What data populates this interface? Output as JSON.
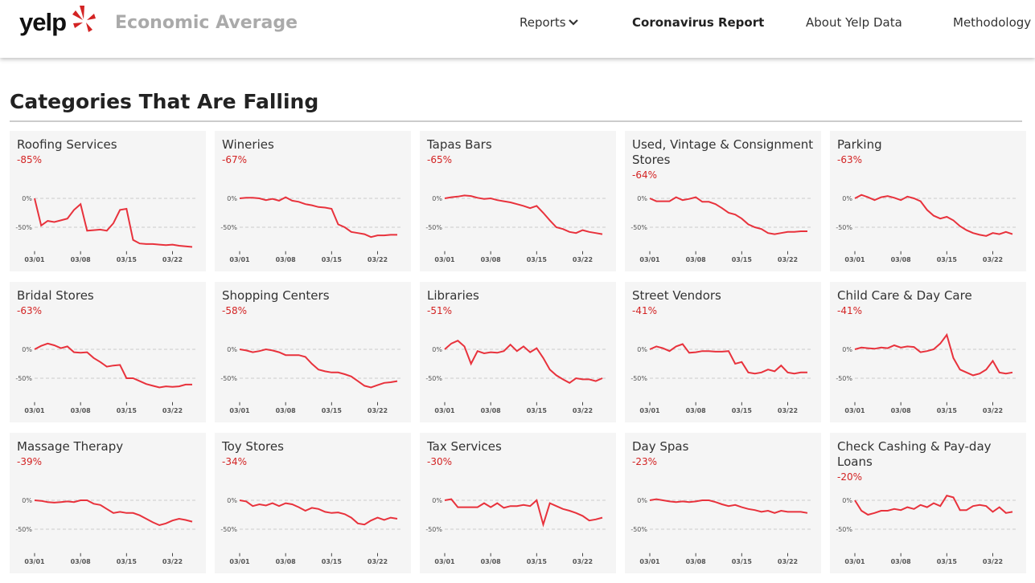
{
  "header": {
    "logo": "yelp",
    "title": "Economic Average",
    "nav": [
      "Reports",
      "Coronavirus Report",
      "About Yelp Data",
      "Methodology"
    ]
  },
  "section_title": "Categories That Are Falling",
  "chart_data": [
    {
      "type": "line",
      "title": "Roofing Services",
      "subtitle": "-85%",
      "color": "#e8323c",
      "grid": true,
      "ylim": [
        -90,
        20
      ],
      "yticks": [
        {
          "value": 0,
          "label": "0%"
        },
        {
          "value": -50,
          "label": "-50%"
        }
      ],
      "categories": [
        "03/01",
        null,
        null,
        null,
        null,
        null,
        null,
        "03/08",
        null,
        null,
        null,
        null,
        null,
        null,
        "03/15",
        null,
        null,
        null,
        null,
        null,
        null,
        "03/22",
        null,
        null,
        null
      ],
      "values": [
        0,
        -47,
        -39,
        -41,
        -38,
        -35,
        -20,
        -10,
        -56,
        -55,
        -54,
        -56,
        -43,
        -20,
        -18,
        -72,
        -78,
        -79,
        -79,
        -80,
        -81,
        -80,
        -82,
        -83,
        -84
      ]
    },
    {
      "type": "line",
      "title": "Wineries",
      "subtitle": "-67%",
      "color": "#e8323c",
      "grid": true,
      "ylim": [
        -90,
        20
      ],
      "yticks": [
        {
          "value": 0,
          "label": "0%"
        },
        {
          "value": -50,
          "label": "-50%"
        }
      ],
      "categories": [
        "03/01",
        null,
        null,
        null,
        null,
        null,
        null,
        "03/08",
        null,
        null,
        null,
        null,
        null,
        null,
        "03/15",
        null,
        null,
        null,
        null,
        null,
        null,
        "03/22",
        null,
        null,
        null
      ],
      "values": [
        0,
        1,
        1,
        0,
        -3,
        -1,
        -4,
        2,
        -4,
        -6,
        -10,
        -12,
        -15,
        -16,
        -18,
        -45,
        -50,
        -58,
        -60,
        -62,
        -67,
        -64,
        -64,
        -63,
        -63
      ]
    },
    {
      "type": "line",
      "title": "Tapas Bars",
      "subtitle": "-65%",
      "color": "#e8323c",
      "grid": true,
      "ylim": [
        -90,
        20
      ],
      "yticks": [
        {
          "value": 0,
          "label": "0%"
        },
        {
          "value": -50,
          "label": "-50%"
        }
      ],
      "categories": [
        "03/01",
        null,
        null,
        null,
        null,
        null,
        null,
        "03/08",
        null,
        null,
        null,
        null,
        null,
        null,
        "03/15",
        null,
        null,
        null,
        null,
        null,
        null,
        "03/22",
        null,
        null,
        null
      ],
      "values": [
        0,
        2,
        3,
        5,
        4,
        1,
        -1,
        0,
        -3,
        -5,
        -7,
        -10,
        -13,
        -17,
        -13,
        -25,
        -38,
        -50,
        -53,
        -58,
        -60,
        -55,
        -58,
        -60,
        -62
      ]
    },
    {
      "type": "line",
      "title": "Used, Vintage & Consignment Stores",
      "subtitle": "-64%",
      "color": "#e8323c",
      "grid": true,
      "ylim": [
        -90,
        20
      ],
      "yticks": [
        {
          "value": 0,
          "label": "0%"
        },
        {
          "value": -50,
          "label": "-50%"
        }
      ],
      "categories": [
        "03/01",
        null,
        null,
        null,
        null,
        null,
        null,
        "03/08",
        null,
        null,
        null,
        null,
        null,
        null,
        "03/15",
        null,
        null,
        null,
        null,
        null,
        null,
        "03/22",
        null,
        null,
        null
      ],
      "values": [
        0,
        -5,
        -5,
        -5,
        2,
        -3,
        -1,
        2,
        -6,
        -6,
        -10,
        -17,
        -25,
        -28,
        -35,
        -45,
        -50,
        -53,
        -60,
        -62,
        -60,
        -58,
        -58,
        -57,
        -57
      ]
    },
    {
      "type": "line",
      "title": "Parking",
      "subtitle": "-63%",
      "color": "#e8323c",
      "grid": true,
      "ylim": [
        -90,
        20
      ],
      "yticks": [
        {
          "value": 0,
          "label": "0%"
        },
        {
          "value": -50,
          "label": "-50%"
        }
      ],
      "categories": [
        "03/01",
        null,
        null,
        null,
        null,
        null,
        null,
        "03/08",
        null,
        null,
        null,
        null,
        null,
        null,
        "03/15",
        null,
        null,
        null,
        null,
        null,
        null,
        "03/22",
        null,
        null,
        null
      ],
      "values": [
        0,
        6,
        2,
        -3,
        2,
        4,
        1,
        -3,
        3,
        0,
        -5,
        -20,
        -30,
        -35,
        -32,
        -38,
        -48,
        -55,
        -60,
        -63,
        -65,
        -60,
        -62,
        -58,
        -62
      ]
    },
    {
      "type": "line",
      "title": "Bridal Stores",
      "subtitle": "-63%",
      "color": "#e8323c",
      "grid": true,
      "ylim": [
        -90,
        20
      ],
      "yticks": [
        {
          "value": 0,
          "label": "0%"
        },
        {
          "value": -50,
          "label": "-50%"
        }
      ],
      "categories": [
        "03/01",
        null,
        null,
        null,
        null,
        null,
        null,
        "03/08",
        null,
        null,
        null,
        null,
        null,
        null,
        "03/15",
        null,
        null,
        null,
        null,
        null,
        null,
        "03/22",
        null,
        null,
        null
      ],
      "values": [
        0,
        6,
        10,
        7,
        2,
        5,
        -5,
        -6,
        -5,
        -15,
        -22,
        -30,
        -28,
        -27,
        -50,
        -50,
        -55,
        -60,
        -63,
        -66,
        -64,
        -65,
        -64,
        -61,
        -61
      ]
    },
    {
      "type": "line",
      "title": "Shopping Centers",
      "subtitle": "-58%",
      "color": "#e8323c",
      "grid": true,
      "ylim": [
        -90,
        20
      ],
      "yticks": [
        {
          "value": 0,
          "label": "0%"
        },
        {
          "value": -50,
          "label": "-50%"
        }
      ],
      "categories": [
        "03/01",
        null,
        null,
        null,
        null,
        null,
        null,
        "03/08",
        null,
        null,
        null,
        null,
        null,
        null,
        "03/15",
        null,
        null,
        null,
        null,
        null,
        null,
        "03/22",
        null,
        null,
        null
      ],
      "values": [
        0,
        -2,
        -5,
        -3,
        0,
        -2,
        -5,
        -10,
        -10,
        -10,
        -13,
        -25,
        -35,
        -38,
        -40,
        -40,
        -43,
        -47,
        -55,
        -63,
        -66,
        -62,
        -58,
        -57,
        -55
      ]
    },
    {
      "type": "line",
      "title": "Libraries",
      "subtitle": "-51%",
      "color": "#e8323c",
      "grid": true,
      "ylim": [
        -90,
        20
      ],
      "yticks": [
        {
          "value": 0,
          "label": "0%"
        },
        {
          "value": -50,
          "label": "-50%"
        }
      ],
      "categories": [
        "03/01",
        null,
        null,
        null,
        null,
        null,
        null,
        "03/08",
        null,
        null,
        null,
        null,
        null,
        null,
        "03/15",
        null,
        null,
        null,
        null,
        null,
        null,
        "03/22",
        null,
        null,
        null
      ],
      "values": [
        0,
        10,
        15,
        5,
        -25,
        -3,
        -7,
        -5,
        -6,
        -3,
        8,
        -3,
        5,
        -5,
        2,
        -15,
        -35,
        -45,
        -52,
        -58,
        -50,
        -52,
        -52,
        -55,
        -50
      ]
    },
    {
      "type": "line",
      "title": "Street Vendors",
      "subtitle": "-41%",
      "color": "#e8323c",
      "grid": true,
      "ylim": [
        -90,
        20
      ],
      "yticks": [
        {
          "value": 0,
          "label": "0%"
        },
        {
          "value": -50,
          "label": "-50%"
        }
      ],
      "categories": [
        "03/01",
        null,
        null,
        null,
        null,
        null,
        null,
        "03/08",
        null,
        null,
        null,
        null,
        null,
        null,
        "03/15",
        null,
        null,
        null,
        null,
        null,
        null,
        "03/22",
        null,
        null,
        null
      ],
      "values": [
        0,
        5,
        2,
        -3,
        5,
        9,
        -6,
        -5,
        -3,
        -3,
        -4,
        -4,
        -3,
        -25,
        -22,
        -40,
        -42,
        -40,
        -35,
        -38,
        -28,
        -40,
        -42,
        -40,
        -40
      ]
    },
    {
      "type": "line",
      "title": "Child Care & Day Care",
      "subtitle": "-41%",
      "color": "#e8323c",
      "grid": true,
      "ylim": [
        -90,
        20
      ],
      "yticks": [
        {
          "value": 0,
          "label": "0%"
        },
        {
          "value": -50,
          "label": "-50%"
        }
      ],
      "categories": [
        "03/01",
        null,
        null,
        null,
        null,
        null,
        null,
        "03/08",
        null,
        null,
        null,
        null,
        null,
        null,
        "03/15",
        null,
        null,
        null,
        null,
        null,
        null,
        "03/22",
        null,
        null,
        null
      ],
      "values": [
        0,
        3,
        2,
        1,
        3,
        2,
        7,
        3,
        5,
        4,
        -5,
        -3,
        0,
        10,
        25,
        -15,
        -35,
        -40,
        -45,
        -42,
        -35,
        -20,
        -40,
        -42,
        -40
      ]
    },
    {
      "type": "line",
      "title": "Massage Therapy",
      "subtitle": "-39%",
      "color": "#e8323c",
      "grid": true,
      "ylim": [
        -90,
        20
      ],
      "yticks": [
        {
          "value": 0,
          "label": "0%"
        },
        {
          "value": -50,
          "label": "-50%"
        }
      ],
      "categories": [
        "03/01",
        null,
        null,
        null,
        null,
        null,
        null,
        "03/08",
        null,
        null,
        null,
        null,
        null,
        null,
        "03/15",
        null,
        null,
        null,
        null,
        null,
        null,
        "03/22",
        null,
        null,
        null
      ],
      "values": [
        0,
        -1,
        -3,
        -4,
        -3,
        -2,
        -3,
        0,
        0,
        -6,
        -8,
        -15,
        -22,
        -20,
        -22,
        -22,
        -26,
        -32,
        -38,
        -43,
        -40,
        -35,
        -32,
        -34,
        -37
      ]
    },
    {
      "type": "line",
      "title": "Toy Stores",
      "subtitle": "-34%",
      "color": "#e8323c",
      "grid": true,
      "ylim": [
        -90,
        20
      ],
      "yticks": [
        {
          "value": 0,
          "label": "0%"
        },
        {
          "value": -50,
          "label": "-50%"
        }
      ],
      "categories": [
        "03/01",
        null,
        null,
        null,
        null,
        null,
        null,
        "03/08",
        null,
        null,
        null,
        null,
        null,
        null,
        "03/15",
        null,
        null,
        null,
        null,
        null,
        null,
        "03/22",
        null,
        null,
        null
      ],
      "values": [
        0,
        -2,
        -10,
        -7,
        -9,
        -5,
        -10,
        -5,
        -7,
        -12,
        -18,
        -13,
        -15,
        -20,
        -22,
        -21,
        -24,
        -30,
        -40,
        -42,
        -35,
        -30,
        -34,
        -30,
        -32
      ]
    },
    {
      "type": "line",
      "title": "Tax Services",
      "subtitle": "-30%",
      "color": "#e8323c",
      "grid": true,
      "ylim": [
        -90,
        20
      ],
      "yticks": [
        {
          "value": 0,
          "label": "0%"
        },
        {
          "value": -50,
          "label": "-50%"
        }
      ],
      "categories": [
        "03/01",
        null,
        null,
        null,
        null,
        null,
        null,
        "03/08",
        null,
        null,
        null,
        null,
        null,
        null,
        "03/15",
        null,
        null,
        null,
        null,
        null,
        null,
        "03/22",
        null,
        null,
        null
      ],
      "values": [
        0,
        2,
        -12,
        -12,
        -12,
        -12,
        -5,
        -12,
        -5,
        -13,
        -10,
        -10,
        -8,
        -10,
        0,
        -42,
        -5,
        -10,
        -15,
        -18,
        -22,
        -27,
        -35,
        -33,
        -30
      ]
    },
    {
      "type": "line",
      "title": "Day Spas",
      "subtitle": "-23%",
      "color": "#e8323c",
      "grid": true,
      "ylim": [
        -90,
        20
      ],
      "yticks": [
        {
          "value": 0,
          "label": "0%"
        },
        {
          "value": -50,
          "label": "-50%"
        }
      ],
      "categories": [
        "03/01",
        null,
        null,
        null,
        null,
        null,
        null,
        "03/08",
        null,
        null,
        null,
        null,
        null,
        null,
        "03/15",
        null,
        null,
        null,
        null,
        null,
        null,
        "03/22",
        null,
        null,
        null
      ],
      "values": [
        0,
        2,
        0,
        -2,
        -3,
        -2,
        -3,
        -2,
        0,
        0,
        -3,
        -7,
        -10,
        -8,
        -12,
        -15,
        -17,
        -20,
        -18,
        -22,
        -18,
        -20,
        -20,
        -20,
        -22
      ]
    },
    {
      "type": "line",
      "title": "Check Cashing & Pay-day Loans",
      "subtitle": "-20%",
      "color": "#e8323c",
      "grid": true,
      "ylim": [
        -90,
        20
      ],
      "yticks": [
        {
          "value": 0,
          "label": "0%"
        },
        {
          "value": -50,
          "label": "-50%"
        }
      ],
      "categories": [
        "03/01",
        null,
        null,
        null,
        null,
        null,
        null,
        "03/08",
        null,
        null,
        null,
        null,
        null,
        null,
        "03/15",
        null,
        null,
        null,
        null,
        null,
        null,
        "03/22",
        null,
        null,
        null
      ],
      "values": [
        0,
        -18,
        -25,
        -22,
        -18,
        -18,
        -15,
        -17,
        -12,
        -15,
        -8,
        -12,
        -5,
        -10,
        8,
        5,
        -17,
        -17,
        -10,
        -8,
        -10,
        -20,
        -12,
        -22,
        -20
      ]
    }
  ]
}
